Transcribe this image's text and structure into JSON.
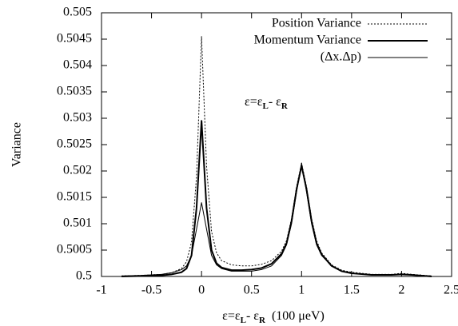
{
  "chart_data": {
    "type": "line",
    "y_label": "Variance",
    "x_label": [
      "ε=ε",
      "L",
      "- ε",
      "R",
      "  (100 μeV)"
    ],
    "annotation": [
      "ε=ε",
      "L",
      "- ε",
      "R"
    ],
    "x": [
      -0.8,
      -0.6,
      -0.4,
      -0.3,
      -0.2,
      -0.15,
      -0.1,
      -0.05,
      0,
      0.05,
      0.1,
      0.15,
      0.2,
      0.3,
      0.4,
      0.5,
      0.6,
      0.7,
      0.8,
      0.85,
      0.9,
      0.95,
      1,
      1.05,
      1.1,
      1.15,
      1.2,
      1.3,
      1.4,
      1.5,
      1.7,
      1.9,
      2,
      2.1,
      2.3
    ],
    "series": [
      {
        "name": "Position Variance",
        "color": "#000000",
        "line_style": "dotted",
        "line_width": 1,
        "values": [
          0.50001,
          0.50002,
          0.50004,
          0.50007,
          0.50015,
          0.50028,
          0.50065,
          0.5019,
          0.50455,
          0.5021,
          0.50085,
          0.50045,
          0.5003,
          0.50022,
          0.5002,
          0.5002,
          0.50023,
          0.5003,
          0.50048,
          0.50068,
          0.5011,
          0.5017,
          0.50215,
          0.5017,
          0.5011,
          0.50068,
          0.50045,
          0.50022,
          0.50012,
          0.50008,
          0.50004,
          0.50004,
          0.50006,
          0.50004,
          0.50001
        ]
      },
      {
        "name": "Momentum Variance",
        "color": "#000000",
        "line_style": "solid",
        "line_width": 2,
        "values": [
          0.5,
          0.50001,
          0.50002,
          0.50004,
          0.50008,
          0.50015,
          0.5004,
          0.5013,
          0.50295,
          0.5013,
          0.5005,
          0.50025,
          0.50017,
          0.50012,
          0.50012,
          0.50013,
          0.50016,
          0.50024,
          0.50043,
          0.50063,
          0.50105,
          0.50165,
          0.5021,
          0.50165,
          0.50105,
          0.50063,
          0.50042,
          0.5002,
          0.5001,
          0.50006,
          0.50003,
          0.50003,
          0.50004,
          0.50003,
          0.5
        ]
      },
      {
        "name": "(Δx.Δp)",
        "color": "#000000",
        "line_style": "solid",
        "line_width": 1,
        "values": [
          0.50001,
          0.50002,
          0.50004,
          0.50007,
          0.50013,
          0.5002,
          0.5004,
          0.5009,
          0.5014,
          0.5009,
          0.5004,
          0.50022,
          0.50015,
          0.5001,
          0.5001,
          0.5001,
          0.50013,
          0.5002,
          0.5004,
          0.5006,
          0.501,
          0.5016,
          0.50215,
          0.5016,
          0.501,
          0.5006,
          0.5004,
          0.5002,
          0.5001,
          0.50006,
          0.50003,
          0.50003,
          0.50005,
          0.50003,
          0.50001
        ]
      }
    ],
    "xlim": [
      -1,
      2.5
    ],
    "xticks": [
      -1,
      -0.5,
      0,
      0.5,
      1,
      1.5,
      2,
      2.5
    ],
    "ylim": [
      0.5,
      0.505
    ],
    "yticks": [
      0.5,
      0.5005,
      0.501,
      0.5015,
      0.502,
      0.5025,
      0.503,
      0.5035,
      0.504,
      0.5045,
      0.505
    ],
    "grid": false,
    "legend": "top-right"
  }
}
